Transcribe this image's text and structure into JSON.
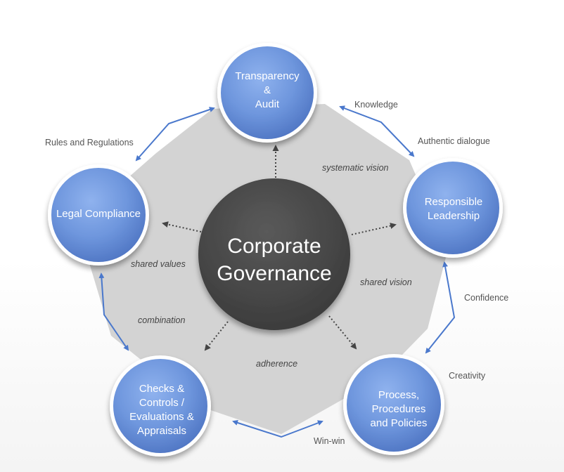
{
  "center": {
    "line1": "Corporate",
    "line2": "Governance"
  },
  "nodes": {
    "transparency": {
      "line1": "Transparency",
      "line2": "&",
      "line3": "Audit"
    },
    "leadership": {
      "line1": "Responsible",
      "line2": "Leadership"
    },
    "process": {
      "line1": "Process,",
      "line2": "Procedures",
      "line3": "and Policies"
    },
    "checks": {
      "line1": "Checks &",
      "line2": "Controls /",
      "line3": "Evaluations &",
      "line4": "Appraisals"
    },
    "legal": {
      "line1": "Legal Compliance"
    }
  },
  "outer_labels": {
    "knowledge": "Knowledge",
    "authentic_dialogue": "Authentic dialogue",
    "confidence": "Confidence",
    "creativity": "Creativity",
    "win_win": "Win-win",
    "rules_regulations": "Rules and Regulations"
  },
  "inner_labels": {
    "systematic_vision": "systematic vision",
    "shared_vision": "shared vision",
    "adherence": "adherence",
    "combination": "combination",
    "shared_values": "shared values"
  },
  "colors": {
    "node_blue": "#6f98df",
    "node_blue_dark": "#4f76c4",
    "center_gray": "#4a4a4a",
    "polygon_gray": "#d3d3d3",
    "connector_blue": "#4a78cc"
  }
}
